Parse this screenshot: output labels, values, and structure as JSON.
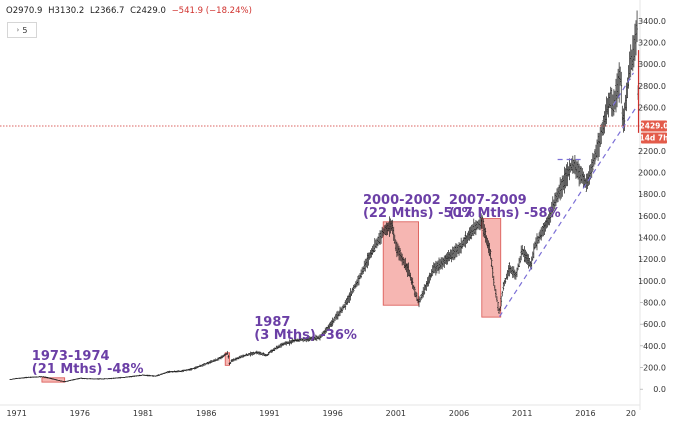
{
  "header": {
    "open": "O2970.9",
    "high": "H3130.2",
    "low": "L2366.7",
    "close": "C2429.0",
    "change": "−541.9 (−18.24%)",
    "interval_label": "5"
  },
  "price_label": {
    "value": "2429.0",
    "countdown": "14d 7h"
  },
  "chart_data": {
    "type": "bar",
    "subtype": "ohlc",
    "title": "",
    "xlabel": "",
    "ylabel": "",
    "xlim": [
      1970,
      2020
    ],
    "ylim": [
      -100,
      3500
    ],
    "x_ticks": [
      "1971",
      "1976",
      "1981",
      "1986",
      "1991",
      "1996",
      "2001",
      "2006",
      "2011",
      "2016",
      "20"
    ],
    "y_ticks": [
      "3400.0",
      "3200.0",
      "3000.0",
      "2800.0",
      "2600.0",
      "2200.0",
      "2000.0",
      "1800.0",
      "1600.0",
      "1400.0",
      "1200.0",
      "1000.0",
      "800.0",
      "600.0",
      "400.0",
      "200.0",
      "0.0"
    ],
    "grid": false,
    "last_price": 2429.0,
    "series": [
      {
        "values": [
          [
            1970.5,
            90
          ],
          [
            1971.0,
            98
          ],
          [
            1972.0,
            110
          ],
          [
            1973.0,
            115
          ],
          [
            1973.5,
            105
          ],
          [
            1974.0,
            90
          ],
          [
            1974.8,
            68
          ],
          [
            1975.5,
            88
          ],
          [
            1976.0,
            100
          ],
          [
            1977.0,
            95
          ],
          [
            1978.0,
            95
          ],
          [
            1979.0,
            103
          ],
          [
            1980.0,
            115
          ],
          [
            1981.0,
            130
          ],
          [
            1982.0,
            120
          ],
          [
            1983.0,
            160
          ],
          [
            1984.0,
            165
          ],
          [
            1985.0,
            190
          ],
          [
            1986.0,
            235
          ],
          [
            1987.0,
            280
          ],
          [
            1987.7,
            335
          ],
          [
            1987.85,
            225
          ],
          [
            1988.0,
            260
          ],
          [
            1989.0,
            310
          ],
          [
            1990.0,
            340
          ],
          [
            1990.8,
            310
          ],
          [
            1991.0,
            340
          ],
          [
            1992.0,
            410
          ],
          [
            1993.0,
            450
          ],
          [
            1994.0,
            460
          ],
          [
            1995.0,
            480
          ],
          [
            1996.0,
            620
          ],
          [
            1997.0,
            780
          ],
          [
            1998.0,
            1000
          ],
          [
            1999.0,
            1250
          ],
          [
            2000.0,
            1450
          ],
          [
            2000.7,
            1520
          ],
          [
            2001.0,
            1320
          ],
          [
            2001.5,
            1200
          ],
          [
            2002.0,
            1100
          ],
          [
            2002.5,
            900
          ],
          [
            2002.8,
            800
          ],
          [
            2003.0,
            850
          ],
          [
            2004.0,
            1110
          ],
          [
            2005.0,
            1200
          ],
          [
            2006.0,
            1300
          ],
          [
            2007.0,
            1450
          ],
          [
            2007.8,
            1560
          ],
          [
            2008.2,
            1370
          ],
          [
            2008.5,
            1250
          ],
          [
            2008.8,
            950
          ],
          [
            2009.2,
            700
          ],
          [
            2009.5,
            950
          ],
          [
            2010.0,
            1120
          ],
          [
            2010.5,
            1050
          ],
          [
            2011.0,
            1280
          ],
          [
            2011.7,
            1140
          ],
          [
            2012.0,
            1330
          ],
          [
            2013.0,
            1550
          ],
          [
            2014.0,
            1850
          ],
          [
            2015.0,
            2080
          ],
          [
            2015.8,
            1950
          ],
          [
            2016.1,
            1880
          ],
          [
            2017.0,
            2250
          ],
          [
            2018.0,
            2700
          ],
          [
            2018.2,
            2620
          ],
          [
            2018.8,
            2900
          ],
          [
            2018.95,
            2420
          ],
          [
            2019.5,
            2950
          ],
          [
            2020.0,
            3230
          ],
          [
            2020.1,
            3380
          ],
          [
            2020.2,
            2429
          ]
        ]
      }
    ],
    "annotations": [
      {
        "label_line1": "1973-1974",
        "label_line2": "(21 Mths) -48%",
        "x_start": 1973.0,
        "x_end": 1974.8,
        "y_low": 65,
        "y_high": 105
      },
      {
        "label_line1": "1987",
        "label_line2": "(3 Mths) -36%",
        "x_start": 1987.5,
        "x_end": 1987.85,
        "y_low": 220,
        "y_high": 336
      },
      {
        "label_line1": "2000-2002",
        "label_line2": "(22 Mths) -50%",
        "x_start": 2000.0,
        "x_end": 2002.8,
        "y_low": 775,
        "y_high": 1545
      },
      {
        "label_line1": "2007-2009",
        "label_line2": "(17 Mths) -58%",
        "x_start": 2007.8,
        "x_end": 2009.3,
        "y_low": 665,
        "y_high": 1575
      }
    ],
    "trendlines": [
      {
        "from": [
          2009.2,
          670
        ],
        "to": [
          2020.0,
          2600
        ],
        "style": "dashed"
      },
      {
        "from": [
          2018.2,
          2620
        ],
        "to": [
          2019.8,
          2920
        ],
        "style": "dashed"
      },
      {
        "from": [
          2013.8,
          2120
        ],
        "to": [
          2015.8,
          2120
        ],
        "style": "dashed"
      }
    ],
    "colors": {
      "bars": "#1a1a1a",
      "highlight_fill": "#f4a9a4",
      "highlight_stroke": "#d9534f",
      "trendline": "#7b6fd6",
      "annotation_text": "#6b3fa6",
      "price_line": "#d0312d",
      "price_box": "#e35b4a",
      "countdown_box": "#e35b4a"
    }
  }
}
